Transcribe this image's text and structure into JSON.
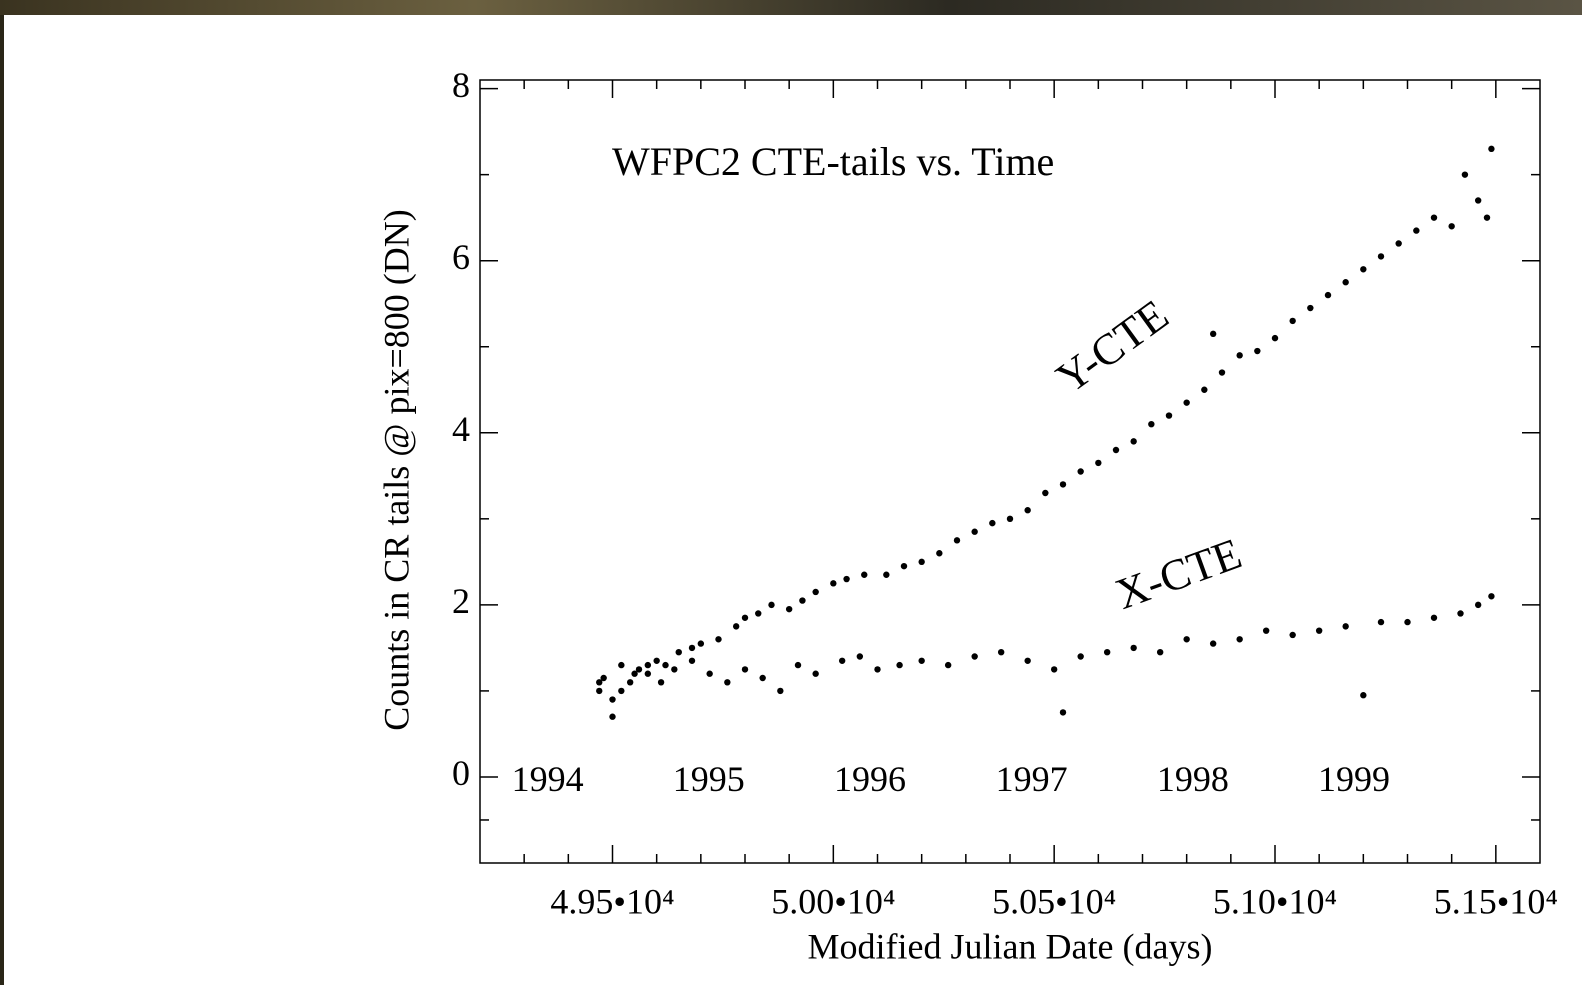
{
  "chart_data": {
    "type": "scatter",
    "title": "WFPC2 CTE-tails vs. Time",
    "x_label": "Modified Julian Date (days)",
    "y_label": "Counts in CR tails @ pix=800 (DN)",
    "xlim": [
      49200,
      51600
    ],
    "ylim": [
      -1,
      8.1
    ],
    "xticks": [
      {
        "value": 49500,
        "label": "4.95•10⁴"
      },
      {
        "value": 50000,
        "label": "5.00•10⁴"
      },
      {
        "value": 50500,
        "label": "5.05•10⁴"
      },
      {
        "value": 51000,
        "label": "5.10•10⁴"
      },
      {
        "value": 51500,
        "label": "5.15•10⁴"
      }
    ],
    "x_minor_ticks": [
      49300,
      49400,
      49600,
      49700,
      49800,
      49900,
      50100,
      50200,
      50300,
      50400,
      50600,
      50700,
      50800,
      50900,
      51100,
      51200,
      51300,
      51400
    ],
    "yticks": [
      0,
      2,
      4,
      6,
      8
    ],
    "y_minor_ticks": [
      -0.5,
      1,
      3,
      5,
      7
    ],
    "year_labels": [
      {
        "value": 49353,
        "label": "1994"
      },
      {
        "value": 49718,
        "label": "1995"
      },
      {
        "value": 50083,
        "label": "1996"
      },
      {
        "value": 50449,
        "label": "1997"
      },
      {
        "value": 50814,
        "label": "1998"
      },
      {
        "value": 51179,
        "label": "1999"
      }
    ],
    "series": [
      {
        "name": "Y-CTE",
        "color": "#000000",
        "x": [
          49470,
          49480,
          49500,
          49520,
          49540,
          49560,
          49580,
          49600,
          49620,
          49650,
          49680,
          49700,
          49740,
          49780,
          49800,
          49830,
          49860,
          49900,
          49930,
          49960,
          50000,
          50030,
          50070,
          50120,
          50160,
          50200,
          50240,
          50280,
          50320,
          50360,
          50400,
          50440,
          50480,
          50520,
          50560,
          50600,
          50640,
          50680,
          50720,
          50760,
          50800,
          50840,
          50860,
          50880,
          50920,
          50960,
          51000,
          51040,
          51080,
          51120,
          51160,
          51200,
          51240,
          51280,
          51320,
          51360,
          51400,
          51430,
          51460,
          51480,
          51490
        ],
        "values": [
          1.0,
          1.15,
          0.9,
          1.3,
          1.1,
          1.25,
          1.2,
          1.35,
          1.3,
          1.45,
          1.5,
          1.55,
          1.6,
          1.75,
          1.85,
          1.9,
          2.0,
          1.95,
          2.05,
          2.15,
          2.25,
          2.3,
          2.35,
          2.35,
          2.45,
          2.5,
          2.6,
          2.75,
          2.85,
          2.95,
          3.0,
          3.1,
          3.3,
          3.4,
          3.55,
          3.65,
          3.8,
          3.9,
          4.1,
          4.2,
          4.35,
          4.5,
          5.15,
          4.7,
          4.9,
          4.95,
          5.1,
          5.3,
          5.45,
          5.6,
          5.75,
          5.9,
          6.05,
          6.2,
          6.35,
          6.5,
          6.4,
          7.0,
          6.7,
          6.5,
          7.3
        ]
      },
      {
        "name": "X-CTE",
        "color": "#000000",
        "x": [
          49470,
          49500,
          49520,
          49550,
          49580,
          49610,
          49640,
          49680,
          49720,
          49760,
          49800,
          49840,
          49880,
          49920,
          49960,
          50020,
          50060,
          50100,
          50150,
          50200,
          50260,
          50320,
          50380,
          50440,
          50500,
          50520,
          50560,
          50620,
          50680,
          50740,
          50800,
          50860,
          50920,
          50980,
          51040,
          51100,
          51160,
          51200,
          51240,
          51300,
          51360,
          51420,
          51460,
          51490
        ],
        "values": [
          1.1,
          0.7,
          1.0,
          1.2,
          1.3,
          1.1,
          1.25,
          1.35,
          1.2,
          1.1,
          1.25,
          1.15,
          1.0,
          1.3,
          1.2,
          1.35,
          1.4,
          1.25,
          1.3,
          1.35,
          1.3,
          1.4,
          1.45,
          1.35,
          1.25,
          0.75,
          1.4,
          1.45,
          1.5,
          1.45,
          1.6,
          1.55,
          1.6,
          1.7,
          1.65,
          1.7,
          1.75,
          0.95,
          1.8,
          1.8,
          1.85,
          1.9,
          2.0,
          2.1
        ]
      }
    ]
  }
}
